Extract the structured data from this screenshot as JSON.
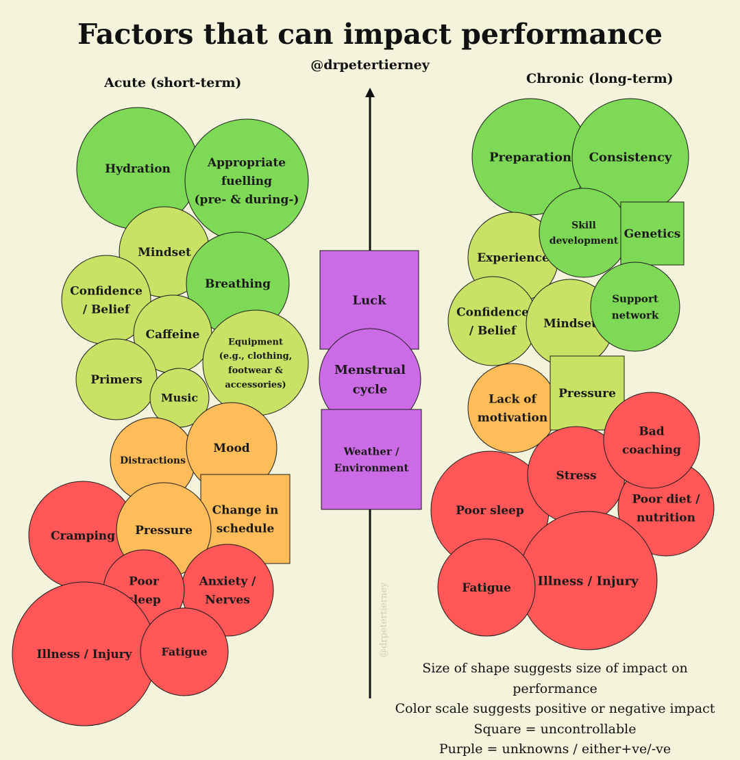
{
  "title": "Factors that can impact performance",
  "handle": "@drpetertierney",
  "watermark": "@drpetertierney",
  "acute_heading": "Acute (short-term)",
  "chronic_heading": "Chronic (long-term)",
  "legend": [
    "Size of shape suggests size of impact on performance",
    "Color scale suggests positive or negative impact",
    "Square = uncontrollable",
    "Purple = unknowns / either+ve/-ve"
  ],
  "colors": {
    "background": "#f4f4dc",
    "green": "#7ed957",
    "lime": "#c9e265",
    "orange": "#ffbd59",
    "red": "#ff5757",
    "purple": "#cb6ce6"
  },
  "acute_factors": [
    {
      "label": "Hydration",
      "color": "green",
      "shape": "circle"
    },
    {
      "label": "Appropriate fuelling (pre- & during-)",
      "color": "green",
      "shape": "circle"
    },
    {
      "label": "Mindset",
      "color": "lime",
      "shape": "circle"
    },
    {
      "label": "Breathing",
      "color": "green",
      "shape": "circle"
    },
    {
      "label": "Confidence / Belief",
      "color": "lime",
      "shape": "circle"
    },
    {
      "label": "Caffeine",
      "color": "lime",
      "shape": "circle"
    },
    {
      "label": "Equipment (e.g., clothing, footwear & accessories)",
      "color": "lime",
      "shape": "circle"
    },
    {
      "label": "Primers",
      "color": "lime",
      "shape": "circle"
    },
    {
      "label": "Music",
      "color": "lime",
      "shape": "circle"
    },
    {
      "label": "Distractions",
      "color": "orange",
      "shape": "circle"
    },
    {
      "label": "Mood",
      "color": "orange",
      "shape": "circle"
    },
    {
      "label": "Change in schedule",
      "color": "orange",
      "shape": "square"
    },
    {
      "label": "Cramping",
      "color": "red",
      "shape": "circle"
    },
    {
      "label": "Pressure",
      "color": "orange",
      "shape": "circle"
    },
    {
      "label": "Anxiety / Nerves",
      "color": "red",
      "shape": "circle"
    },
    {
      "label": "Poor sleep",
      "color": "red",
      "shape": "circle"
    },
    {
      "label": "Illness / Injury",
      "color": "red",
      "shape": "circle"
    },
    {
      "label": "Fatigue",
      "color": "red",
      "shape": "circle"
    }
  ],
  "middle_factors": [
    {
      "label": "Luck",
      "color": "purple",
      "shape": "square"
    },
    {
      "label": "Menstrual cycle",
      "color": "purple",
      "shape": "circle"
    },
    {
      "label": "Weather / Environment",
      "color": "purple",
      "shape": "square"
    }
  ],
  "chronic_factors": [
    {
      "label": "Preparation",
      "color": "green",
      "shape": "circle"
    },
    {
      "label": "Consistency",
      "color": "green",
      "shape": "circle"
    },
    {
      "label": "Experience",
      "color": "lime",
      "shape": "circle"
    },
    {
      "label": "Skill development",
      "color": "green",
      "shape": "circle"
    },
    {
      "label": "Genetics",
      "color": "green",
      "shape": "square"
    },
    {
      "label": "Confidence / Belief",
      "color": "lime",
      "shape": "circle"
    },
    {
      "label": "Mindset",
      "color": "lime",
      "shape": "circle"
    },
    {
      "label": "Support network",
      "color": "green",
      "shape": "circle"
    },
    {
      "label": "Lack of motivation",
      "color": "orange",
      "shape": "circle"
    },
    {
      "label": "Pressure",
      "color": "lime",
      "shape": "square"
    },
    {
      "label": "Poor sleep",
      "color": "red",
      "shape": "circle"
    },
    {
      "label": "Stress",
      "color": "red",
      "shape": "circle"
    },
    {
      "label": "Bad coaching",
      "color": "red",
      "shape": "circle"
    },
    {
      "label": "Poor diet / nutrition",
      "color": "red",
      "shape": "circle"
    },
    {
      "label": "Illness / Injury",
      "color": "red",
      "shape": "circle"
    },
    {
      "label": "Fatigue",
      "color": "red",
      "shape": "circle"
    }
  ]
}
